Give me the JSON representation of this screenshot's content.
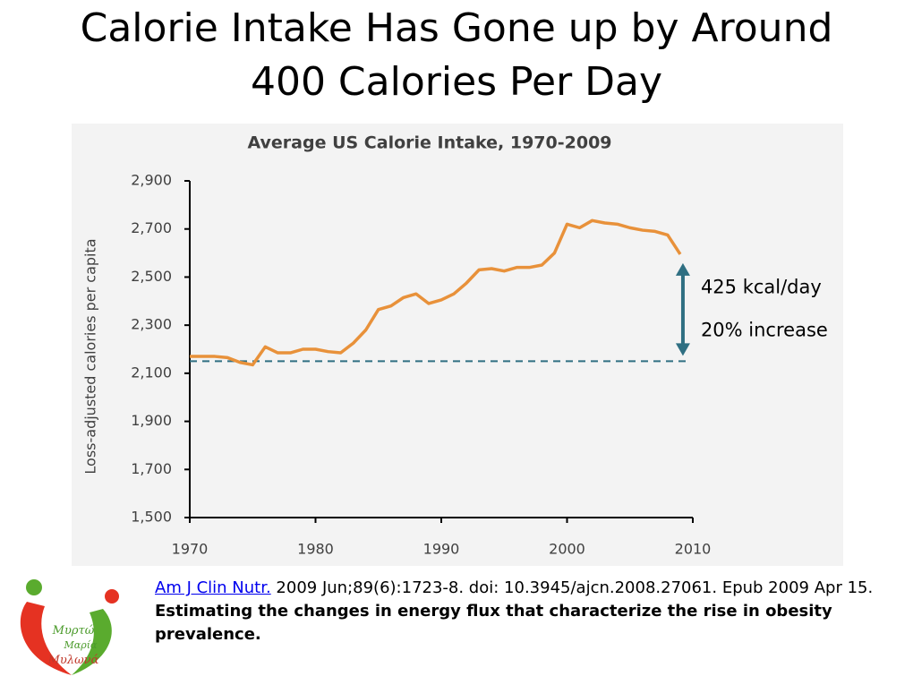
{
  "slide": {
    "title_lines": [
      "Calorie Intake Has Gone up by Around",
      "400 Calories Per Day"
    ],
    "citation": {
      "link": "Am J Clin Nutr.",
      "text": " 2009 Jun;89(6):1723-8. doi: 10.3945/ajcn.2008.27061. Epub 2009 Apr 15.",
      "article": "Estimating the changes in energy flux that characterize the rise in obesity prevalence."
    },
    "logo": {
      "lines": [
        "Μυρτώ",
        "Μαρία",
        "Μυλωνά"
      ]
    }
  },
  "chart_data": {
    "type": "line",
    "title": "Average US Calorie Intake, 1970-2009",
    "y_label": "Loss-adjusted calories per capita",
    "x": [
      1970,
      1971,
      1972,
      1973,
      1974,
      1975,
      1976,
      1977,
      1978,
      1979,
      1980,
      1981,
      1982,
      1983,
      1984,
      1985,
      1986,
      1987,
      1988,
      1989,
      1990,
      1991,
      1992,
      1993,
      1994,
      1995,
      1996,
      1997,
      1998,
      1999,
      2000,
      2001,
      2002,
      2003,
      2004,
      2005,
      2006,
      2007,
      2008,
      2009
    ],
    "series": [
      {
        "name": "Average US Calorie Intake",
        "color": "#e8913a",
        "values": [
          2170,
          2170,
          2170,
          2165,
          2145,
          2135,
          2210,
          2185,
          2185,
          2200,
          2200,
          2190,
          2185,
          2225,
          2280,
          2365,
          2380,
          2415,
          2430,
          2390,
          2405,
          2430,
          2475,
          2530,
          2535,
          2525,
          2540,
          2540,
          2550,
          2600,
          2720,
          2705,
          2735,
          2725,
          2720,
          2705,
          2695,
          2690,
          2675,
          2595
        ]
      }
    ],
    "reference_line": 2150,
    "reference_color": "#2f6f82",
    "annotations": [
      "425 kcal/day",
      "20% increase"
    ],
    "xlim": [
      1970,
      2010
    ],
    "xticks": [
      1970,
      1980,
      1990,
      2000,
      2010
    ],
    "ylim": [
      1500,
      2900
    ],
    "yticks": [
      {
        "value": 1500,
        "label": "1,500"
      },
      {
        "value": 1700,
        "label": "1,700"
      },
      {
        "value": 1900,
        "label": "1,900"
      },
      {
        "value": 2100,
        "label": "2,100"
      },
      {
        "value": 2300,
        "label": "2,300"
      },
      {
        "value": 2500,
        "label": "2,500"
      },
      {
        "value": 2700,
        "label": "2,700"
      },
      {
        "value": 2900,
        "label": "2,900"
      }
    ]
  }
}
